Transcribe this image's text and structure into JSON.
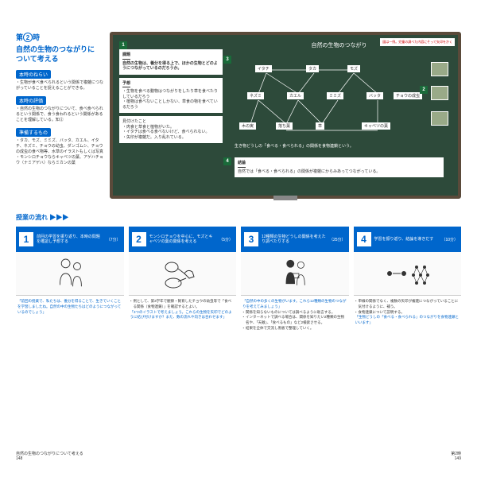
{
  "header": {
    "prefix": "第",
    "num": "2",
    "suffix": "時"
  },
  "title": "自然の生物のつながりに\nついて考える",
  "sections": {
    "aim_label": "本時のねらい",
    "aim": "・生物が食べ食べられるという関係で複雑につながっていることを捉えることができる。",
    "eval_label": "本時の評価",
    "eval": "・自然の生物のつながりについて、食べ食べられるという関係で、食う食われるという関係があることを理解している。知②",
    "prep_label": "準備するもの",
    "prep": "・タカ、モズ、ミミズ、バッタ、カエル、イタチ、ネズミ、チョウの幼虫、ダンゴムシ、チョウの成虫の食べ物等、水草のイラストもしくは写真\n・モンシロチョウならキャベツの葉、アゲハチョウ（ナミアゲハ）ならミカンの葉"
  },
  "blackboard": {
    "note_right": "図は一例。児童の調べた内容にそって矢印をかく",
    "box1_tag": "課題",
    "box1": "自然の生物は、養分を得る上で、ほかの生物とどのようにつながっているのだろうか。",
    "box2_tag": "予想",
    "box2": "・生物を食べる動物はつながりをしたり草を食べたりしているだろう\n・植物は食べないことしかない、草食の物を食べているだろう",
    "box3": "見付けたこと\n・肉食と草食と植物がいた。\n・イタチは食べる食べないけど、食べられない。\n・矢印が複雑だ。入り乱れている。",
    "center_title": "自然の生物のつながり",
    "nodes": {
      "n1": "イタチ",
      "n2": "タカ",
      "n3": "モズ",
      "n4": "ネズミ",
      "n5": "カエル",
      "n6": "ミミズ",
      "n7": "バッタ",
      "n8": "チョウの成虫",
      "n9": "木の実",
      "n10": "落ち葉",
      "n11": "草",
      "n12": "キャベツの葉"
    },
    "caption": "生き物どうしの「食べる・食べられる」の関係を食物連鎖という。",
    "box4_tag": "結論",
    "box4": "自然では「食べる・食べられる」の関係が複雑にからみあってつながっている。"
  },
  "flow_label": "授業の流れ ▶▶▶",
  "steps": [
    {
      "n": "1",
      "title": "前回の学習を振り返り、本時の問題を確認し予想する",
      "time": "（7分）",
      "body": [
        {
          "t": "quote",
          "v": "「前回の授業で、私たちは、養分を得ることで、生きていくことを学習しましたね。自然の中の生物たちはどのようにつながっているのでしょう」"
        }
      ]
    },
    {
      "n": "2",
      "title": "モンシロチョウを中心に、モズとキャベツの葉の関係を考える",
      "time": "（5分）",
      "body": [
        {
          "t": "bullet",
          "v": "例として、第3学年で観察・飼育したチョウの幼虫等で「食べる関係（食物連鎖）」を確認するとよい。"
        },
        {
          "t": "quote",
          "v": "「3つのイラストで考えましょう。これらの生物を矢印でどのように結び付けますか？また、数の流れや向きは合わせます」"
        }
      ]
    },
    {
      "n": "3",
      "title": "12種類の生物どうしの関係を考えたり調べたりする",
      "time": "（25分）",
      "body": [
        {
          "t": "quote",
          "v": "「自然の中の多くの生物がいます。これら12種類の生物のつながりを考えてみましょう」"
        },
        {
          "t": "bullet",
          "v": "関係を知らないものについては調べるように助言する。"
        },
        {
          "t": "bullet",
          "v": "インターネットで調べる場合は、関係を知りたい2種類の生物名や、「天敵」、「食べるもの」など2検索させる。"
        },
        {
          "t": "bullet",
          "v": "結果を全体で交流し黒板で整理していく。"
        }
      ]
    },
    {
      "n": "4",
      "title": "学習を振り返り、結論を導きだす",
      "time": "（10分）",
      "body": [
        {
          "t": "bullet",
          "v": "単線の関係でなく、複数の矢印が複雑につながっていることに気付けるように、補う。"
        },
        {
          "t": "bullet",
          "v": "食物連鎖について説明する。"
        },
        {
          "t": "quote",
          "v": "「生物どうしの「食べる・食べられる」のつながりを食物連鎖といいます」"
        }
      ]
    }
  ],
  "footer": {
    "left_title": "自然の生物のつながりについて考える",
    "left_page": "148",
    "right_title": "第2時",
    "right_page": "149"
  }
}
